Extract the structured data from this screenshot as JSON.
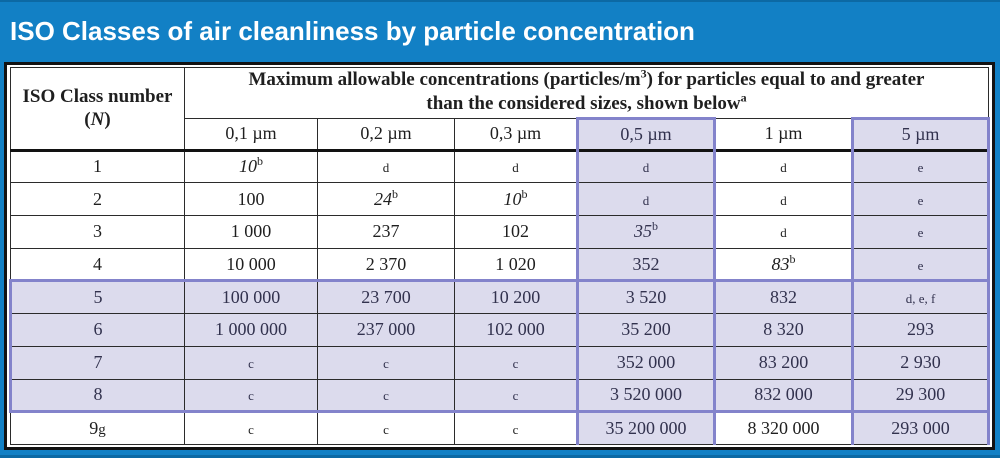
{
  "title": "ISO Classes of air cleanliness by particle concentration",
  "colors": {
    "banner_bg": "#1280c5",
    "banner_text": "#ffffff",
    "frame_border": "#121212",
    "grid_line": "#2b2b2b",
    "highlight_bg": "#dcdbed",
    "highlight_border": "#8383cb",
    "cell_bg": "#ffffff",
    "text": "#1f1f1f"
  },
  "table": {
    "corner_header": {
      "line1": "ISO Class number",
      "open_paren": "(",
      "symbol": "N",
      "close_paren": ")"
    },
    "main_header": {
      "line1_text": "Maximum allowable concentrations (particles/m",
      "line1_sup": "3",
      "line1_rest": ") for particles equal to and greater",
      "line2_text": "than the considered sizes, shown below",
      "line2_sup": "a"
    },
    "size_headers": [
      "0,1 µm",
      "0,2 µm",
      "0,3 µm",
      "0,5 µm",
      "1 µm",
      "5 µm"
    ],
    "highlight_cols": [
      3,
      5
    ],
    "band_rows": [
      4,
      5,
      6,
      7
    ],
    "rows": [
      {
        "label": {
          "v": "1"
        },
        "cells": [
          {
            "v": "10",
            "sup": "b",
            "i": true
          },
          {
            "v": "d",
            "n": true
          },
          {
            "v": "d",
            "n": true
          },
          {
            "v": "d",
            "n": true
          },
          {
            "v": "d",
            "n": true
          },
          {
            "v": "e",
            "n": true
          }
        ]
      },
      {
        "label": {
          "v": "2"
        },
        "cells": [
          {
            "v": "100"
          },
          {
            "v": "24",
            "sup": "b",
            "i": true
          },
          {
            "v": "10",
            "sup": "b",
            "i": true
          },
          {
            "v": "d",
            "n": true
          },
          {
            "v": "d",
            "n": true
          },
          {
            "v": "e",
            "n": true
          }
        ]
      },
      {
        "label": {
          "v": "3"
        },
        "cells": [
          {
            "v": "1 000"
          },
          {
            "v": "237"
          },
          {
            "v": "102"
          },
          {
            "v": "35",
            "sup": "b",
            "i": true
          },
          {
            "v": "d",
            "n": true
          },
          {
            "v": "e",
            "n": true
          }
        ]
      },
      {
        "label": {
          "v": "4"
        },
        "cells": [
          {
            "v": "10 000"
          },
          {
            "v": "2 370"
          },
          {
            "v": "1 020"
          },
          {
            "v": "352"
          },
          {
            "v": "83",
            "sup": "b",
            "i": true
          },
          {
            "v": "e",
            "n": true
          }
        ]
      },
      {
        "label": {
          "v": "5"
        },
        "cells": [
          {
            "v": "100 000"
          },
          {
            "v": "23 700"
          },
          {
            "v": "10 200"
          },
          {
            "v": "3 520"
          },
          {
            "v": "832"
          },
          {
            "v": "d, e, f",
            "n": true
          }
        ]
      },
      {
        "label": {
          "v": "6"
        },
        "cells": [
          {
            "v": "1 000 000"
          },
          {
            "v": "237 000"
          },
          {
            "v": "102 000"
          },
          {
            "v": "35 200"
          },
          {
            "v": "8 320"
          },
          {
            "v": "293"
          }
        ]
      },
      {
        "label": {
          "v": "7"
        },
        "cells": [
          {
            "v": "c",
            "n": true
          },
          {
            "v": "c",
            "n": true
          },
          {
            "v": "c",
            "n": true
          },
          {
            "v": "352 000"
          },
          {
            "v": "83 200"
          },
          {
            "v": "2 930"
          }
        ]
      },
      {
        "label": {
          "v": "8"
        },
        "cells": [
          {
            "v": "c",
            "n": true
          },
          {
            "v": "c",
            "n": true
          },
          {
            "v": "c",
            "n": true
          },
          {
            "v": "3 520 000"
          },
          {
            "v": "832 000"
          },
          {
            "v": "29 300"
          }
        ]
      },
      {
        "label": {
          "v": "9",
          "suffix": "g"
        },
        "cells": [
          {
            "v": "c",
            "n": true
          },
          {
            "v": "c",
            "n": true
          },
          {
            "v": "c",
            "n": true
          },
          {
            "v": "35 200 000"
          },
          {
            "v": "8 320 000"
          },
          {
            "v": "293 000"
          }
        ]
      }
    ]
  }
}
